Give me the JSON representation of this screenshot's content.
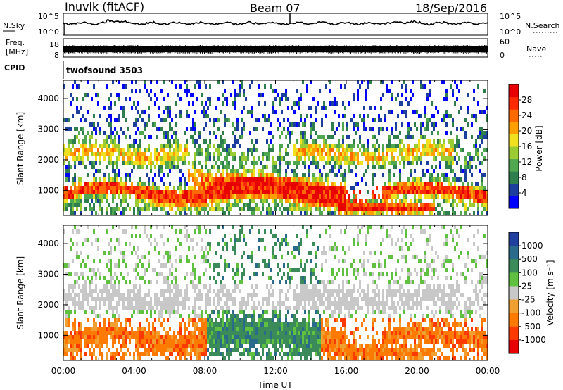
{
  "header": {
    "station": "Inuvik (fitACF)",
    "beam": "Beam 07",
    "date": "18/Sep/2016"
  },
  "noise_panel": {
    "left_label": "N.Sky",
    "left_ticks": [
      "10^5",
      "10^0"
    ],
    "right_label": "N.Search",
    "right_ticks": [
      "10^5",
      "10^0"
    ]
  },
  "freq_panel": {
    "left_label_line1": "Freq.",
    "left_label_line2": "[MHz]",
    "left_ticks": [
      "18",
      "8"
    ],
    "right_label": "Nave",
    "right_ticks": [
      "60",
      "0"
    ]
  },
  "cpid_panel": {
    "label": "CPID",
    "value": "twofsound 3503"
  },
  "colors": {
    "power_scale": [
      "#0000ff",
      "#1c3f9e",
      "#2e7e4e",
      "#4fa84f",
      "#9bcc33",
      "#f0e020",
      "#ffa000",
      "#ff6a00",
      "#ff2a00",
      "#e80000"
    ],
    "velocity_scale": [
      "#2040a0",
      "#2a6a8a",
      "#3a8a5a",
      "#60c040",
      "#c8c8c8",
      "#f0a030",
      "#ff7a00",
      "#ff3a00",
      "#e80000"
    ]
  },
  "chart_data": [
    {
      "type": "heatmap",
      "name": "power",
      "xlabel": "",
      "ylabel": "Slant Range [km]",
      "xlim": [
        0,
        24
      ],
      "ylim": [
        180,
        4600
      ],
      "yticks": [
        1000,
        2000,
        3000,
        4000
      ],
      "colorbar": {
        "label": "Power [dB]",
        "range": [
          0,
          32
        ],
        "tick_labels": [
          "4",
          "8",
          "12",
          "16",
          "20",
          "24",
          "28"
        ]
      }
    },
    {
      "type": "heatmap",
      "name": "velocity",
      "xlabel": "Time UT",
      "ylabel": "Slant Range [km]",
      "xlim": [
        0,
        24
      ],
      "ylim": [
        180,
        4600
      ],
      "xtick_labels": [
        "00:00",
        "04:00",
        "08:00",
        "12:00",
        "16:00",
        "20:00",
        "00:00"
      ],
      "yticks": [
        1000,
        2000,
        3000,
        4000
      ],
      "colorbar": {
        "label": "Velocity [m s⁻¹]",
        "tick_labels": [
          "1000",
          "500",
          "100",
          "25",
          "-25",
          "-100",
          "-500",
          "-1000"
        ]
      }
    }
  ]
}
